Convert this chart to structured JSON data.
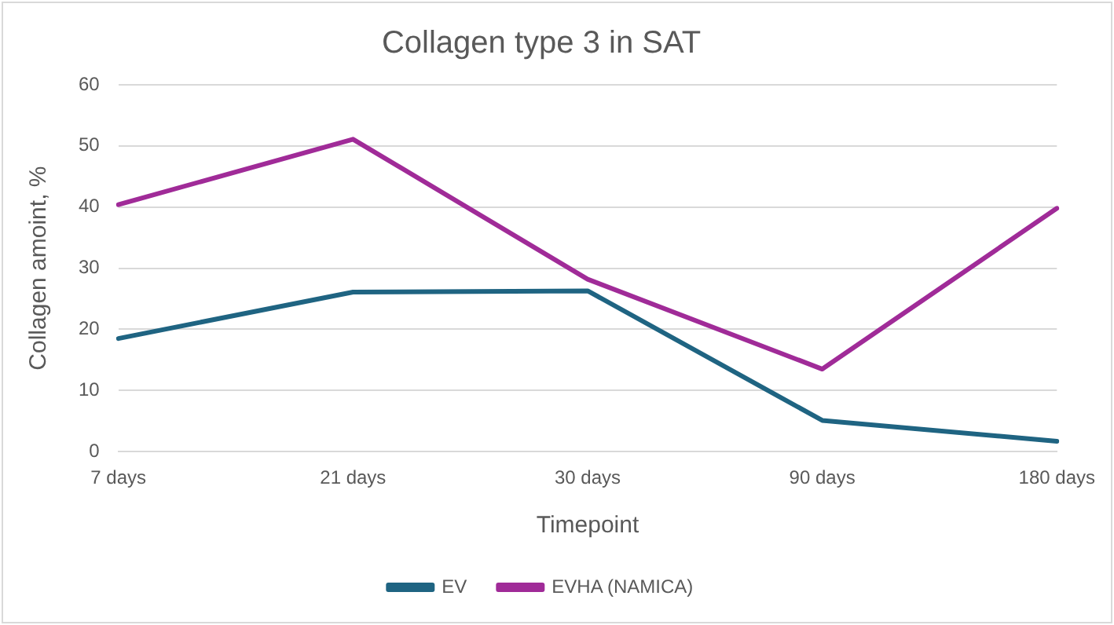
{
  "chart_data": {
    "type": "line",
    "title": "Collagen type 3 in SAT",
    "xlabel": "Timepoint",
    "ylabel": "Collagen amoint, %",
    "categories": [
      "7 days",
      "21 days",
      "30 days",
      "90 days",
      "180 days"
    ],
    "series": [
      {
        "name": "EV",
        "color": "#1f6482",
        "values": [
          18.5,
          26.1,
          26.3,
          5.1,
          1.7
        ]
      },
      {
        "name": "EVHA (NAMICA)",
        "color": "#a02b98",
        "values": [
          40.4,
          51.1,
          28.2,
          13.5,
          39.8
        ]
      }
    ],
    "ylim": [
      0,
      60
    ],
    "yticks": [
      0,
      10,
      20,
      30,
      40,
      50,
      60
    ],
    "grid": "y",
    "legend": "bottom",
    "marker": "none",
    "line_style": "solid"
  }
}
